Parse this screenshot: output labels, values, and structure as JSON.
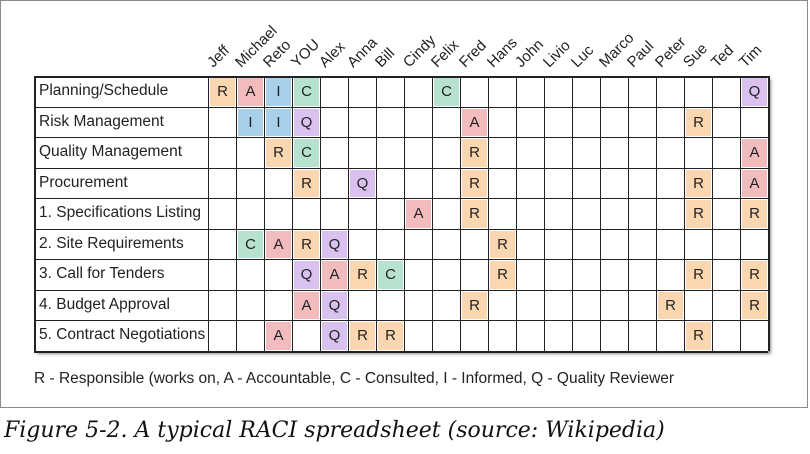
{
  "people": [
    "Jeff",
    "Michael",
    "Reto",
    "YOU",
    "Alex",
    "Anna",
    "Bill",
    "Cindy",
    "Felix",
    "Fred",
    "Hans",
    "John",
    "Livio",
    "Luc",
    "Marco",
    "Paul",
    "Peter",
    "Sue",
    "Ted",
    "Tim"
  ],
  "rows": [
    {
      "task": "Planning/Schedule",
      "cells": [
        "R",
        "A",
        "I",
        "C",
        "",
        "",
        "",
        "",
        "C",
        "",
        "",
        "",
        "",
        "",
        "",
        "",
        "",
        "",
        "",
        "Q"
      ]
    },
    {
      "task": "Risk Management",
      "cells": [
        "",
        "I",
        "I",
        "Q",
        "",
        "",
        "",
        "",
        "",
        "A",
        "",
        "",
        "",
        "",
        "",
        "",
        "",
        "R",
        "",
        ""
      ]
    },
    {
      "task": "Quality Management",
      "cells": [
        "",
        "",
        "R",
        "C",
        "",
        "",
        "",
        "",
        "",
        "R",
        "",
        "",
        "",
        "",
        "",
        "",
        "",
        "",
        "",
        "A"
      ]
    },
    {
      "task": "Procurement",
      "cells": [
        "",
        "",
        "",
        "R",
        "",
        "Q",
        "",
        "",
        "",
        "R",
        "",
        "",
        "",
        "",
        "",
        "",
        "",
        "R",
        "",
        "A"
      ]
    },
    {
      "task": "1. Specifications Listing",
      "cells": [
        "",
        "",
        "",
        "",
        "",
        "",
        "",
        "A",
        "",
        "R",
        "",
        "",
        "",
        "",
        "",
        "",
        "",
        "R",
        "",
        "R"
      ]
    },
    {
      "task": "2. Site Requirements",
      "cells": [
        "",
        "C",
        "A",
        "R",
        "Q",
        "",
        "",
        "",
        "",
        "",
        "R",
        "",
        "",
        "",
        "",
        "",
        "",
        "",
        "",
        ""
      ]
    },
    {
      "task": "3. Call for Tenders",
      "cells": [
        "",
        "",
        "",
        "Q",
        "A",
        "R",
        "C",
        "",
        "",
        "",
        "R",
        "",
        "",
        "",
        "",
        "",
        "",
        "R",
        "",
        "R"
      ]
    },
    {
      "task": "4. Budget Approval",
      "cells": [
        "",
        "",
        "",
        "A",
        "Q",
        "",
        "",
        "",
        "",
        "R",
        "",
        "",
        "",
        "",
        "",
        "",
        "R",
        "",
        "",
        "R"
      ]
    },
    {
      "task": "5. Contract Negotiations",
      "cells": [
        "",
        "",
        "A",
        "",
        "Q",
        "R",
        "R",
        "",
        "",
        "",
        "",
        "",
        "",
        "",
        "",
        "",
        "",
        "R",
        "",
        ""
      ]
    }
  ],
  "role_colors": {
    "R": "#fad7b0",
    "A": "#f2bcbf",
    "I": "#a9cfe9",
    "C": "#b7e2cf",
    "Q": "#d9c2ef"
  },
  "legend": "R - Responsible (works on, A - Accountable, C - Consulted, I - Informed, Q - Quality Reviewer",
  "caption": "Figure 5-2. A typical RACI spreadsheet (source: Wikipedia)"
}
